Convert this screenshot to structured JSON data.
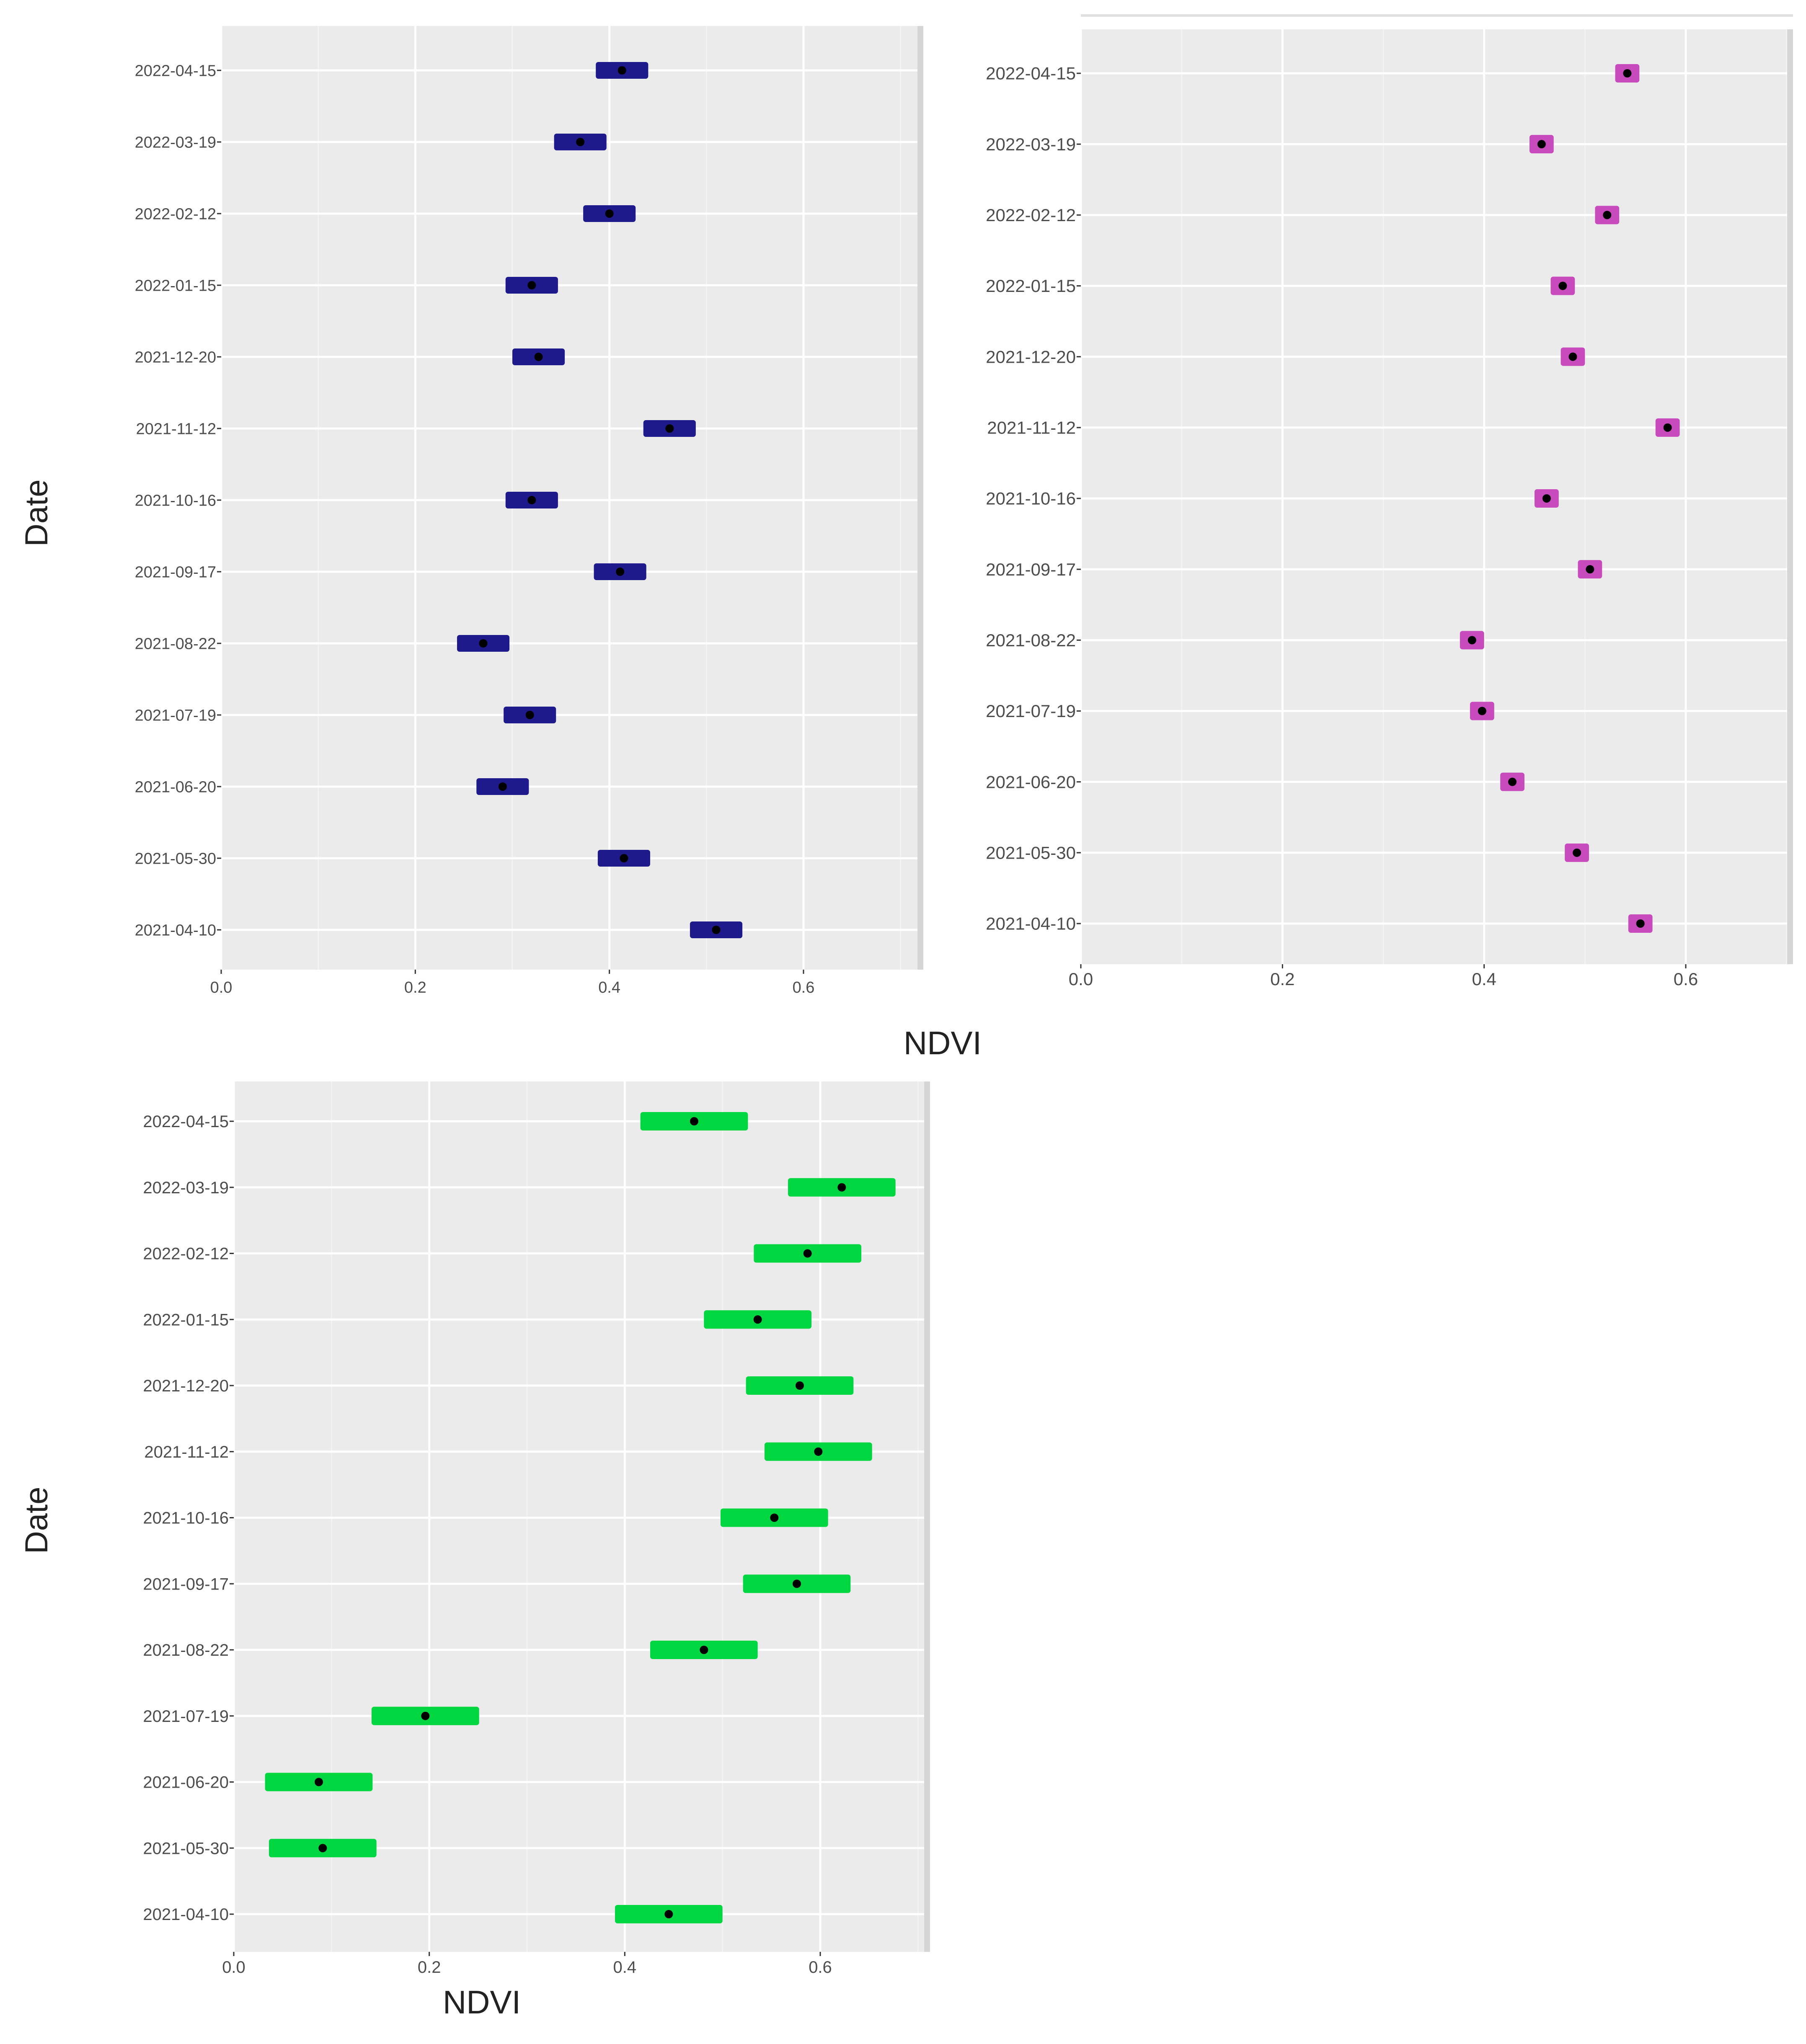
{
  "labels": {
    "date_axis_title": "Date",
    "ndvi_axis_title": "NDVI"
  },
  "chart_data": [
    {
      "type": "range",
      "series_name": "panel-1",
      "color": "#1e1a8c",
      "xlabel": "NDVI",
      "ylabel": "Date",
      "xlim": [
        0,
        0.72
      ],
      "x_ticks": [
        0.0,
        0.2,
        0.4,
        0.6
      ],
      "x_tick_labels": [
        "0.0",
        "0.2",
        "0.4",
        "0.6"
      ],
      "categories": [
        "2021-04-10",
        "2021-05-30",
        "2021-06-20",
        "2021-07-19",
        "2021-08-22",
        "2021-09-17",
        "2021-10-16",
        "2021-11-12",
        "2021-12-20",
        "2022-01-15",
        "2022-02-12",
        "2022-03-19",
        "2022-04-15"
      ],
      "means": [
        0.51,
        0.415,
        0.29,
        0.318,
        0.27,
        0.411,
        0.32,
        0.462,
        0.327,
        0.32,
        0.4,
        0.37,
        0.413
      ],
      "half_width": 0.027
    },
    {
      "type": "range",
      "series_name": "panel-2",
      "color": "#c84bbd",
      "xlabel": "NDVI",
      "ylabel": "Date",
      "xlim": [
        0,
        0.71
      ],
      "x_ticks": [
        0.0,
        0.2,
        0.4,
        0.6
      ],
      "x_tick_labels": [
        "0.0",
        "0.2",
        "0.4",
        "0.6"
      ],
      "categories": [
        "2021-04-10",
        "2021-05-30",
        "2021-06-20",
        "2021-07-19",
        "2021-08-22",
        "2021-09-17",
        "2021-10-16",
        "2021-11-12",
        "2021-12-20",
        "2022-01-15",
        "2022-02-12",
        "2022-03-19",
        "2022-04-15"
      ],
      "means": [
        0.555,
        0.492,
        0.428,
        0.398,
        0.388,
        0.505,
        0.462,
        0.582,
        0.488,
        0.478,
        0.522,
        0.457,
        0.542
      ],
      "half_width": 0.012
    },
    {
      "type": "range",
      "series_name": "panel-3",
      "color": "#00d640",
      "xlabel": "NDVI",
      "ylabel": "Date",
      "xlim": [
        0,
        0.71
      ],
      "x_ticks": [
        0.0,
        0.2,
        0.4,
        0.6
      ],
      "x_tick_labels": [
        "0.0",
        "0.2",
        "0.4",
        "0.6"
      ],
      "categories": [
        "2021-04-10",
        "2021-05-30",
        "2021-06-20",
        "2021-07-19",
        "2021-08-22",
        "2021-09-17",
        "2021-10-16",
        "2021-11-12",
        "2021-12-20",
        "2022-01-15",
        "2022-02-12",
        "2022-03-19",
        "2022-04-15"
      ],
      "means": [
        0.445,
        0.091,
        0.087,
        0.196,
        0.481,
        0.576,
        0.553,
        0.598,
        0.579,
        0.536,
        0.587,
        0.622,
        0.471
      ],
      "half_width": 0.055
    }
  ]
}
